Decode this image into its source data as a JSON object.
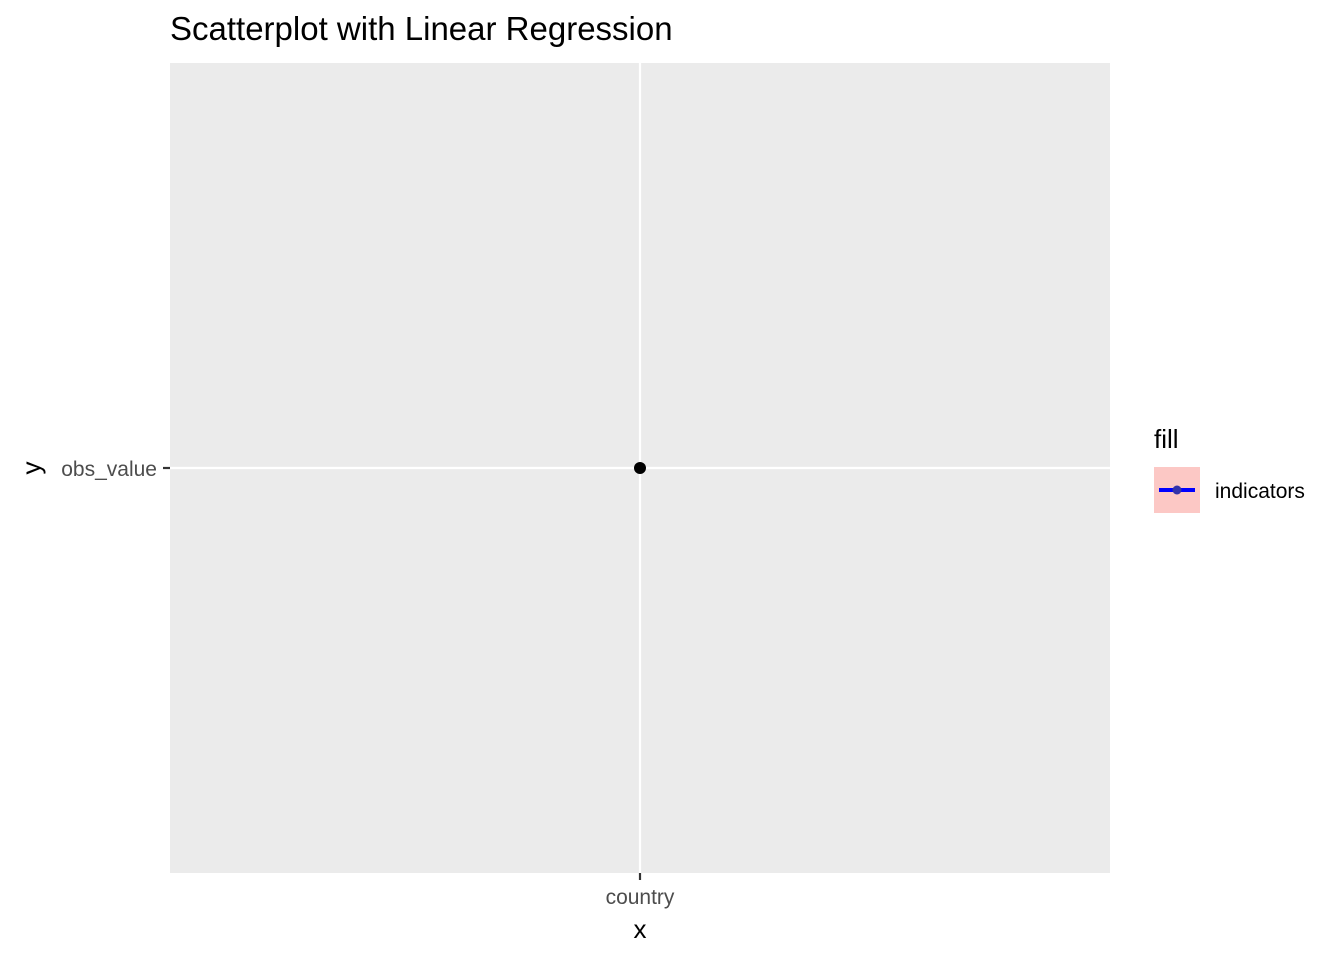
{
  "chart_data": {
    "type": "scatter",
    "title": "Scatterplot with Linear Regression",
    "xlabel": "x",
    "ylabel": "y",
    "x_categories": [
      "country"
    ],
    "y_categories": [
      "obs_value"
    ],
    "points": [
      {
        "x": "country",
        "y": "obs_value"
      }
    ],
    "legend": {
      "title": "fill",
      "placement": "right",
      "entries": [
        {
          "label": "indicators",
          "fill_color": "#F8766D",
          "line_color": "#0000FF"
        }
      ]
    },
    "grid": true,
    "colors": {
      "panel_background": "#EBEBEB",
      "grid_line": "#FFFFFF",
      "point": "#000000",
      "tick_text": "#4D4D4D"
    }
  }
}
